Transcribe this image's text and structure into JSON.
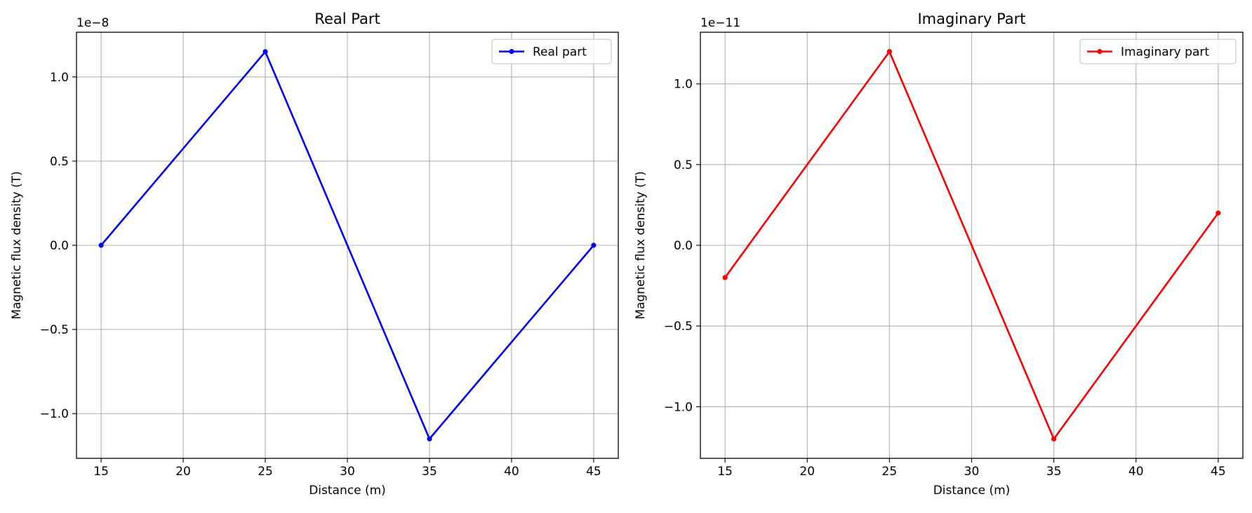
{
  "chart_data": [
    {
      "type": "line",
      "title": "Real Part",
      "xlabel": "Distance (m)",
      "ylabel": "Magnetic flux density (T)",
      "offset_label": "1e−8",
      "scale": 1e-08,
      "x": [
        15,
        25,
        35,
        45
      ],
      "xlim": [
        13.5,
        46.5
      ],
      "ylim": [
        -1.2655,
        1.2655
      ],
      "xticks": [
        15,
        20,
        25,
        30,
        35,
        40,
        45
      ],
      "xtick_labels": [
        "15",
        "20",
        "25",
        "30",
        "35",
        "40",
        "45"
      ],
      "yticks": [
        -1.0,
        -0.5,
        0.0,
        0.5,
        1.0
      ],
      "ytick_labels": [
        "−1.0",
        "−0.5",
        "0.0",
        "0.5",
        "1.0"
      ],
      "grid": true,
      "legend_position": "top-right",
      "series": [
        {
          "name": "Real part",
          "color": "#0000ff",
          "marker": "circle",
          "values": [
            0.0,
            1.15,
            -1.15,
            0.0
          ]
        }
      ]
    },
    {
      "type": "line",
      "title": "Imaginary Part",
      "xlabel": "Distance (m)",
      "ylabel": "Magnetic flux density (T)",
      "offset_label": "1e−11",
      "scale": 1e-11,
      "x": [
        15,
        25,
        35,
        45
      ],
      "xlim": [
        13.5,
        46.5
      ],
      "ylim": [
        -1.32,
        1.32
      ],
      "xticks": [
        15,
        20,
        25,
        30,
        35,
        40,
        45
      ],
      "xtick_labels": [
        "15",
        "20",
        "25",
        "30",
        "35",
        "40",
        "45"
      ],
      "yticks": [
        -1.0,
        -0.5,
        0.0,
        0.5,
        1.0
      ],
      "ytick_labels": [
        "−1.0",
        "−0.5",
        "0.0",
        "0.5",
        "1.0"
      ],
      "grid": true,
      "legend_position": "top-right",
      "series": [
        {
          "name": "Imaginary part",
          "color": "#ff0000",
          "marker": "circle",
          "values": [
            -0.2,
            1.2,
            -1.2,
            0.2
          ]
        }
      ]
    }
  ]
}
